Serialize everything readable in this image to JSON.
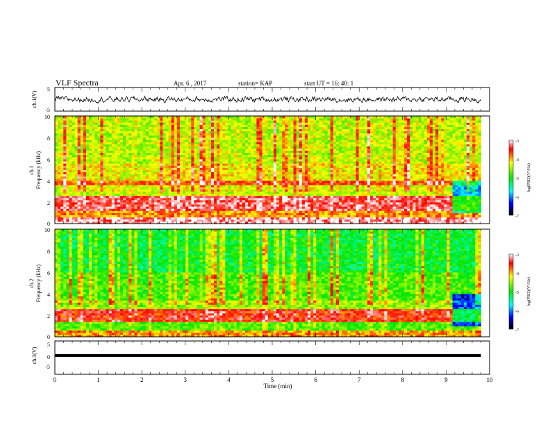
{
  "header": {
    "title": "VLF Spectra",
    "date": "Apr. 6 , 2017",
    "station": "station= KAP",
    "start": "start UT =  16: 40: 1"
  },
  "chart_data": [
    {
      "type": "line",
      "panel": "ch1-waveform",
      "ylabel": "ch.1(V)",
      "ylim": [
        -5,
        5
      ],
      "yticks": [
        "5",
        "-5"
      ],
      "xlim": [
        0,
        10
      ],
      "color": "#000000",
      "description_values": {
        "baseline": 0,
        "amplitude_range": [
          -2.5,
          2.5
        ]
      }
    },
    {
      "type": "heatmap",
      "panel": "ch1-spectrogram",
      "ylabel": "Frequency (kHz)",
      "ylabel2": "ch.1",
      "ylim": [
        0,
        10
      ],
      "yticks": [
        "0",
        "2",
        "4",
        "6",
        "8",
        "10"
      ],
      "xlim": [
        0,
        10
      ],
      "data_end_min": 9.8,
      "change_at_min": 9.1,
      "bands_khz": [
        {
          "from": 0.0,
          "to": 0.6,
          "level": -3.2
        },
        {
          "from": 0.6,
          "to": 1.2,
          "level": -4.0
        },
        {
          "from": 1.2,
          "to": 2.6,
          "level": -3.4
        },
        {
          "from": 2.6,
          "to": 3.6,
          "level": -4.4
        },
        {
          "from": 3.6,
          "to": 4.0,
          "level": -3.8
        },
        {
          "from": 4.0,
          "to": 5.6,
          "level": -4.3
        },
        {
          "from": 5.6,
          "to": 10.0,
          "level": -4.5
        }
      ],
      "colorbar": {
        "label": "log(PSD)(V²/Hz)",
        "min": -7,
        "max": -3,
        "ticks": [
          "-3",
          "-4",
          "-5",
          "-6",
          "-7"
        ]
      }
    },
    {
      "type": "heatmap",
      "panel": "ch2-spectrogram",
      "ylabel": "Frequency (kHz)",
      "ylabel2": "ch.2",
      "ylim": [
        0,
        10
      ],
      "yticks": [
        "0",
        "2",
        "4",
        "6",
        "8",
        "10"
      ],
      "xlim": [
        0,
        10
      ],
      "data_end_min": 9.8,
      "change_at_min": 9.1,
      "bands_khz": [
        {
          "from": 0.0,
          "to": 0.6,
          "level": -4.0
        },
        {
          "from": 0.6,
          "to": 1.4,
          "level": -4.8
        },
        {
          "from": 1.4,
          "to": 2.6,
          "level": -3.6
        },
        {
          "from": 2.6,
          "to": 3.4,
          "level": -4.6
        },
        {
          "from": 3.4,
          "to": 6.0,
          "level": -4.9
        },
        {
          "from": 6.0,
          "to": 10.0,
          "level": -5.2
        }
      ],
      "colorbar": {
        "label": "log(PSD)(V²/Hz)",
        "min": -7,
        "max": -3,
        "ticks": [
          "-3",
          "-4",
          "-5",
          "-6",
          "-7"
        ]
      }
    },
    {
      "type": "line",
      "panel": "ch3-waveform",
      "ylabel": "ch.3(V)",
      "ylim": [
        -5,
        5
      ],
      "yticks": [
        "5",
        "0",
        "-5"
      ],
      "xlim": [
        0,
        10
      ],
      "constant_value": -1.5,
      "color": "#000000"
    }
  ],
  "xaxis": {
    "label": "Time (min)",
    "ticks": [
      "0",
      "1",
      "2",
      "3",
      "4",
      "5",
      "6",
      "7",
      "8",
      "9",
      "10"
    ]
  }
}
